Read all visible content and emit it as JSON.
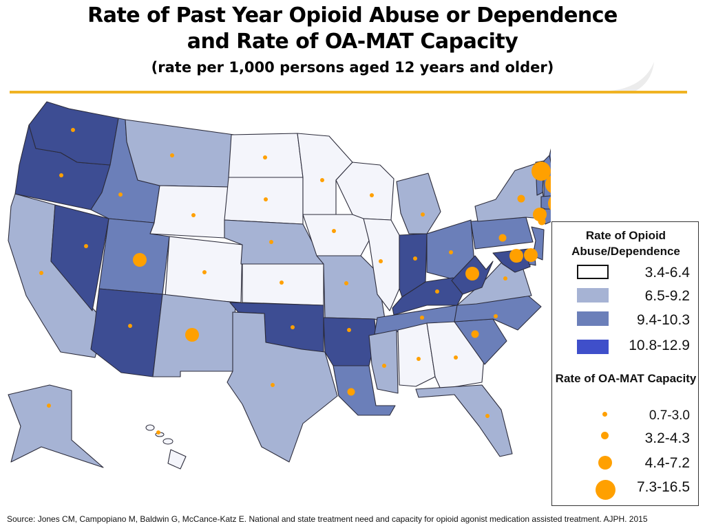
{
  "title": {
    "line1": "Rate of Past Year Opioid Abuse or Dependence",
    "line2": "and Rate of OA-MAT Capacity",
    "subtitle": "(rate per 1,000 persons aged 12 years and older)"
  },
  "colors": {
    "rule": "#f0b323",
    "dot": "#ffa000",
    "state_border": "#2b2b3a",
    "abuse_class_1": "#f4f5fb",
    "abuse_class_2": "#a6b3d4",
    "abuse_class_3": "#6b7fb9",
    "abuse_class_4": "#3d4d93",
    "legend_class_4_swatch": "#3f4fca"
  },
  "legend": {
    "abuse_heading": "Rate of Opioid Abuse/Dependence",
    "abuse_classes": [
      "3.4-6.4",
      "6.5-9.2",
      "9.4-10.3",
      "10.8-12.9"
    ],
    "capacity_heading": "Rate of OA-MAT Capacity",
    "capacity_classes": [
      "0.7-3.0",
      "3.2-4.3",
      "4.4-7.2",
      "7.3-16.5"
    ]
  },
  "states": {
    "WA": {
      "abuse_class": 4,
      "capacity_class": 1
    },
    "OR": {
      "abuse_class": 4,
      "capacity_class": 1
    },
    "CA": {
      "abuse_class": 2,
      "capacity_class": 1
    },
    "NV": {
      "abuse_class": 4,
      "capacity_class": 1
    },
    "ID": {
      "abuse_class": 3,
      "capacity_class": 1
    },
    "MT": {
      "abuse_class": 2,
      "capacity_class": 1
    },
    "WY": {
      "abuse_class": 1,
      "capacity_class": 1
    },
    "UT": {
      "abuse_class": 3,
      "capacity_class": 3
    },
    "AZ": {
      "abuse_class": 4,
      "capacity_class": 1
    },
    "CO": {
      "abuse_class": 1,
      "capacity_class": 1
    },
    "NM": {
      "abuse_class": 2,
      "capacity_class": 3
    },
    "ND": {
      "abuse_class": 1,
      "capacity_class": 1
    },
    "SD": {
      "abuse_class": 1,
      "capacity_class": 1
    },
    "NE": {
      "abuse_class": 2,
      "capacity_class": 1
    },
    "KS": {
      "abuse_class": 1,
      "capacity_class": 1
    },
    "OK": {
      "abuse_class": 4,
      "capacity_class": 1
    },
    "TX": {
      "abuse_class": 2,
      "capacity_class": 1
    },
    "MN": {
      "abuse_class": 1,
      "capacity_class": 1
    },
    "IA": {
      "abuse_class": 1,
      "capacity_class": 1
    },
    "MO": {
      "abuse_class": 2,
      "capacity_class": 1
    },
    "AR": {
      "abuse_class": 4,
      "capacity_class": 1
    },
    "LA": {
      "abuse_class": 3,
      "capacity_class": 2
    },
    "WI": {
      "abuse_class": 1,
      "capacity_class": 1
    },
    "IL": {
      "abuse_class": 1,
      "capacity_class": 1
    },
    "MI": {
      "abuse_class": 2,
      "capacity_class": 1
    },
    "IN": {
      "abuse_class": 4,
      "capacity_class": 1
    },
    "OH": {
      "abuse_class": 3,
      "capacity_class": 1
    },
    "KY": {
      "abuse_class": 4,
      "capacity_class": 1
    },
    "TN": {
      "abuse_class": 3,
      "capacity_class": 1
    },
    "MS": {
      "abuse_class": 2,
      "capacity_class": 1
    },
    "AL": {
      "abuse_class": 1,
      "capacity_class": 1
    },
    "GA": {
      "abuse_class": 1,
      "capacity_class": 1
    },
    "FL": {
      "abuse_class": 2,
      "capacity_class": 1
    },
    "SC": {
      "abuse_class": 3,
      "capacity_class": 2
    },
    "NC": {
      "abuse_class": 3,
      "capacity_class": 1
    },
    "VA": {
      "abuse_class": 2,
      "capacity_class": 1
    },
    "WV": {
      "abuse_class": 4,
      "capacity_class": 3
    },
    "PA": {
      "abuse_class": 3,
      "capacity_class": 2
    },
    "NY": {
      "abuse_class": 2,
      "capacity_class": 2
    },
    "VT": {
      "abuse_class": 3,
      "capacity_class": 4
    },
    "NH": {
      "abuse_class": 3,
      "capacity_class": 4
    },
    "ME": {
      "abuse_class": 3,
      "capacity_class": 4
    },
    "MA": {
      "abuse_class": 3,
      "capacity_class": 4
    },
    "RI": {
      "abuse_class": 3,
      "capacity_class": 4
    },
    "CT": {
      "abuse_class": 3,
      "capacity_class": 3
    },
    "NJ": {
      "abuse_class": 3,
      "capacity_class": 2
    },
    "DE": {
      "abuse_class": 3,
      "capacity_class": 3
    },
    "MD": {
      "abuse_class": 4,
      "capacity_class": 3
    },
    "DC": {
      "abuse_class": 3,
      "capacity_class": 2
    },
    "AK": {
      "abuse_class": 2,
      "capacity_class": 1
    },
    "HI": {
      "abuse_class": 1,
      "capacity_class": 1
    }
  },
  "source": "Source: Jones CM, Campopiano M, Baldwin G, McCance-Katz E. National and state treatment need and capacity for opioid agonist medication assisted treatment. AJPH. 2015"
}
